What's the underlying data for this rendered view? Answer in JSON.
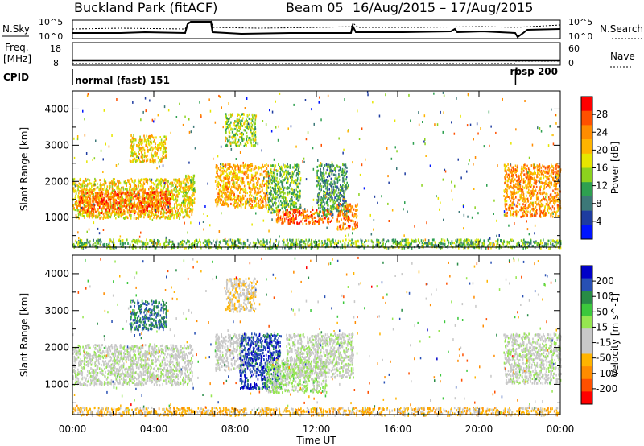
{
  "header": {
    "site": "Buckland Park (fitACF)",
    "beam": "Beam 05",
    "dates": "16/Aug/2015 – 17/Aug/2015"
  },
  "strip_labels": {
    "nsky": "N.Sky",
    "nsky_hi": "10^5",
    "nsky_lo": "10^0",
    "nsearch": "N.Search",
    "nsearch_hi": "10^5",
    "nsearch_lo": "10^0",
    "freq_line1": "Freq.",
    "freq_line2": "[MHz]",
    "freq_hi": "18",
    "freq_lo": "8",
    "nave": "Nave",
    "nave_hi": "60",
    "nave_lo": "0",
    "cpid": "CPID"
  },
  "cpid_segments": [
    {
      "label": "normal (fast) 151",
      "start_hour": 0,
      "end_hour": 21.8
    },
    {
      "label": "rbsp 200",
      "start_hour": 21.8,
      "end_hour": 24
    }
  ],
  "x_axis": {
    "label": "Time UT",
    "ticks": [
      "00:00",
      "04:00",
      "08:00",
      "12:00",
      "16:00",
      "20:00",
      "00:00"
    ],
    "range_hours": [
      0,
      24
    ]
  },
  "chart_data": [
    {
      "type": "heatmap",
      "ylabel": "Slant Range [km]",
      "yticks": [
        1000,
        2000,
        3000,
        4000
      ],
      "ylim": [
        180,
        4500
      ],
      "colorbar": {
        "label": "Power [dB]",
        "ticks": [
          "28",
          "24",
          "20",
          "16",
          "12",
          "8",
          "4"
        ],
        "colors": [
          "#ff0000",
          "#ff5000",
          "#ff8c00",
          "#ffb400",
          "#e6e600",
          "#8cd21e",
          "#2ea050",
          "#3c7878",
          "#1e3ca0",
          "#0014ff"
        ]
      },
      "regions": [
        {
          "t0": 0.0,
          "t1": 5.9,
          "r0": 1000,
          "r1": 2100,
          "value": 20
        },
        {
          "t0": 0.3,
          "t1": 4.8,
          "r0": 1150,
          "r1": 1750,
          "value": 26
        },
        {
          "t0": 2.8,
          "t1": 4.6,
          "r0": 2550,
          "r1": 3300,
          "value": 20
        },
        {
          "t0": 5.4,
          "t1": 6.0,
          "r0": 1400,
          "r1": 2200,
          "value": 18
        },
        {
          "t0": 7.0,
          "t1": 9.6,
          "r0": 1300,
          "r1": 2500,
          "value": 22
        },
        {
          "t0": 7.5,
          "t1": 9.0,
          "r0": 3000,
          "r1": 3900,
          "value": 16
        },
        {
          "t0": 9.6,
          "t1": 11.2,
          "r0": 1150,
          "r1": 2500,
          "value": 14
        },
        {
          "t0": 10.0,
          "t1": 12.8,
          "r0": 850,
          "r1": 1250,
          "value": 26
        },
        {
          "t0": 12.0,
          "t1": 13.5,
          "r0": 1050,
          "r1": 2500,
          "value": 12
        },
        {
          "t0": 13.0,
          "t1": 14.0,
          "r0": 700,
          "r1": 1400,
          "value": 25
        },
        {
          "t0": 0.0,
          "t1": 24.0,
          "r0": 180,
          "r1": 420,
          "value": 14
        },
        {
          "t0": 21.2,
          "t1": 24.0,
          "r0": 1050,
          "r1": 2500,
          "value": 24
        }
      ]
    },
    {
      "type": "heatmap",
      "ylabel": "Slant Range [km]",
      "yticks": [
        1000,
        2000,
        3000,
        4000
      ],
      "ylim": [
        180,
        4500
      ],
      "colorbar": {
        "label": "Velocity [m s^-1]",
        "ticks": [
          "200",
          "100",
          "50",
          "15",
          "-15",
          "-50",
          "-100",
          "-200"
        ],
        "colors": [
          "#0000c8",
          "#2850b4",
          "#288c46",
          "#3cc83c",
          "#96e650",
          "#c8c8c8",
          "#c8c8c8",
          "#ffb400",
          "#ff8c00",
          "#ff5000",
          "#ff0000"
        ]
      },
      "regions": [
        {
          "t0": 0.0,
          "t1": 5.9,
          "r0": 1000,
          "r1": 2100,
          "value": 0
        },
        {
          "t0": 2.8,
          "t1": 4.6,
          "r0": 2500,
          "r1": 3300,
          "value": 150
        },
        {
          "t0": 7.0,
          "t1": 8.5,
          "r0": 1400,
          "r1": 2400,
          "value": -20
        },
        {
          "t0": 8.2,
          "t1": 10.2,
          "r0": 900,
          "r1": 2400,
          "value": 180
        },
        {
          "t0": 9.5,
          "t1": 12.5,
          "r0": 800,
          "r1": 1700,
          "value": 30
        },
        {
          "t0": 10.5,
          "t1": 13.8,
          "r0": 1200,
          "r1": 2400,
          "value": 0
        },
        {
          "t0": 7.5,
          "t1": 9.0,
          "r0": 3000,
          "r1": 3900,
          "value": -60
        },
        {
          "t0": 0.0,
          "t1": 24.0,
          "r0": 180,
          "r1": 400,
          "value": -80
        },
        {
          "t0": 21.2,
          "t1": 24.0,
          "r0": 1050,
          "r1": 2400,
          "value": 0
        }
      ]
    }
  ]
}
